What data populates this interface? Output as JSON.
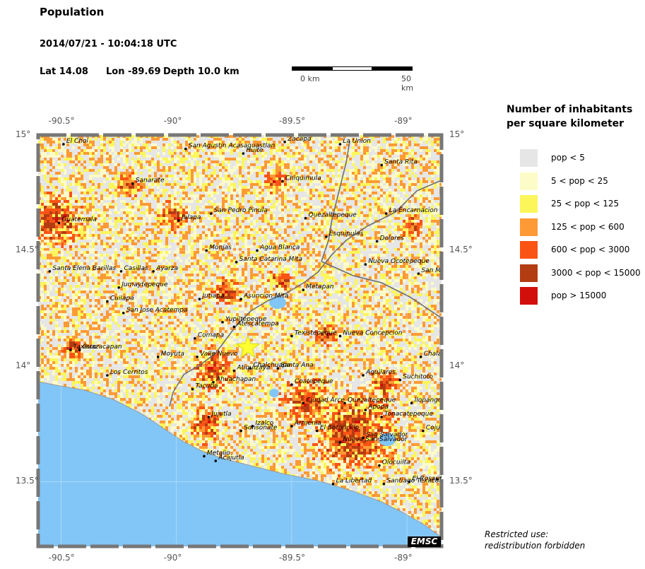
{
  "header": {
    "title": "Population",
    "datetime": "2014/07/21 - 10:04:18 UTC",
    "lat_label": "Lat 14.08",
    "lon_label": "Lon -89.69",
    "depth_label": "Depth  10.0 km"
  },
  "scale": {
    "start_label": "0 km",
    "end_label": "50 km"
  },
  "map": {
    "lon_range": [
      -90.6,
      -88.85
    ],
    "lat_range": [
      13.22,
      15.0
    ],
    "lon_ticks": [
      {
        "value": -90.5,
        "label": "-90.5°"
      },
      {
        "value": -90.0,
        "label": "-90°"
      },
      {
        "value": -89.5,
        "label": "-89.5°"
      },
      {
        "value": -89.0,
        "label": "-89°"
      }
    ],
    "lat_ticks": [
      {
        "value": 15.0,
        "label": "15°"
      },
      {
        "value": 14.5,
        "label": "14.5°"
      },
      {
        "value": 14.0,
        "label": "14°"
      },
      {
        "value": 13.5,
        "label": "13.5°"
      }
    ],
    "epicenter": {
      "lat": 14.08,
      "lon": -89.69
    },
    "cities": [
      {
        "name": "El Chol",
        "lon": -90.49,
        "lat": 14.96
      },
      {
        "name": "San Agustin Acasaguastlan",
        "lon": -89.96,
        "lat": 14.94
      },
      {
        "name": "Zacapa",
        "lon": -89.53,
        "lat": 14.97
      },
      {
        "name": "La Union",
        "lon": -89.29,
        "lat": 14.96
      },
      {
        "name": "Huite",
        "lon": -89.71,
        "lat": 14.92
      },
      {
        "name": "Santa Rita",
        "lon": -89.11,
        "lat": 14.87
      },
      {
        "name": "Sanarate",
        "lon": -90.19,
        "lat": 14.79
      },
      {
        "name": "Chiquimula",
        "lon": -89.54,
        "lat": 14.8
      },
      {
        "name": "Guatemala",
        "lon": -90.51,
        "lat": 14.62
      },
      {
        "name": "San Pedro Pinula",
        "lon": -89.85,
        "lat": 14.66
      },
      {
        "name": "Jalapa",
        "lon": -89.99,
        "lat": 14.63
      },
      {
        "name": "Quezaltepeque",
        "lon": -89.44,
        "lat": 14.64
      },
      {
        "name": "La Encarnacion",
        "lon": -89.09,
        "lat": 14.66
      },
      {
        "name": "Esquipulas",
        "lon": -89.35,
        "lat": 14.56
      },
      {
        "name": "Dolores",
        "lon": -89.13,
        "lat": 14.54
      },
      {
        "name": "Monjas",
        "lon": -89.87,
        "lat": 14.5
      },
      {
        "name": "Agua Blanca",
        "lon": -89.65,
        "lat": 14.5
      },
      {
        "name": "Santa Catarina Mita",
        "lon": -89.74,
        "lat": 14.45
      },
      {
        "name": "Nueva Ocotepeque",
        "lon": -89.18,
        "lat": 14.44
      },
      {
        "name": "San Marcos",
        "lon": -88.95,
        "lat": 14.4
      },
      {
        "name": "Santa Elena Barillas",
        "lon": -90.55,
        "lat": 14.41
      },
      {
        "name": "Casillas",
        "lon": -90.24,
        "lat": 14.41
      },
      {
        "name": "Ayarza",
        "lon": -90.1,
        "lat": 14.41
      },
      {
        "name": "Jumaytepeque",
        "lon": -90.25,
        "lat": 14.34
      },
      {
        "name": "Jutiapa",
        "lon": -89.9,
        "lat": 14.29
      },
      {
        "name": "Asuncion Mita",
        "lon": -89.72,
        "lat": 14.29
      },
      {
        "name": "Metapan",
        "lon": -89.45,
        "lat": 14.33
      },
      {
        "name": "Cuilapa",
        "lon": -90.3,
        "lat": 14.28
      },
      {
        "name": "San Jose Acatempa",
        "lon": -90.23,
        "lat": 14.23
      },
      {
        "name": "Yupiltepeque",
        "lon": -89.8,
        "lat": 14.19
      },
      {
        "name": "Atescatempa",
        "lon": -89.75,
        "lat": 14.17
      },
      {
        "name": "Comapa",
        "lon": -89.92,
        "lat": 14.12
      },
      {
        "name": "Texistepeque",
        "lon": -89.5,
        "lat": 14.13
      },
      {
        "name": "Nueva Concepcion",
        "lon": -89.29,
        "lat": 14.13
      },
      {
        "name": "Chalatenango",
        "lon": -88.94,
        "lat": 14.04
      },
      {
        "name": "Taxisco",
        "lon": -90.46,
        "lat": 14.07
      },
      {
        "name": "Guazacapan",
        "lon": -90.42,
        "lat": 14.07
      },
      {
        "name": "Moyuta",
        "lon": -90.08,
        "lat": 14.04
      },
      {
        "name": "Valle Nuevo",
        "lon": -89.91,
        "lat": 14.04
      },
      {
        "name": "Santa Ana",
        "lon": -89.56,
        "lat": 13.99
      },
      {
        "name": "Los Cerritos",
        "lon": -90.3,
        "lat": 13.96
      },
      {
        "name": "Chalchuapa",
        "lon": -89.68,
        "lat": 13.99
      },
      {
        "name": "Atiquizaya",
        "lon": -89.75,
        "lat": 13.98
      },
      {
        "name": "Aguilares",
        "lon": -89.19,
        "lat": 13.96
      },
      {
        "name": "Suchitoto",
        "lon": -89.03,
        "lat": 13.94
      },
      {
        "name": "Ahuachapan",
        "lon": -89.84,
        "lat": 13.93
      },
      {
        "name": "Coatepeque",
        "lon": -89.5,
        "lat": 13.92
      },
      {
        "name": "Tacuba",
        "lon": -89.93,
        "lat": 13.9
      },
      {
        "name": "Ciudad Arce",
        "lon": -89.45,
        "lat": 13.84
      },
      {
        "name": "Quezaltepeque",
        "lon": -89.27,
        "lat": 13.84
      },
      {
        "name": "Ilopango",
        "lon": -88.98,
        "lat": 13.84
      },
      {
        "name": "Apopa",
        "lon": -89.18,
        "lat": 13.81
      },
      {
        "name": "Tonacatepeque",
        "lon": -89.11,
        "lat": 13.78
      },
      {
        "name": "Jujutla",
        "lon": -89.86,
        "lat": 13.78
      },
      {
        "name": "Izalco",
        "lon": -89.67,
        "lat": 13.74
      },
      {
        "name": "Sonsonate",
        "lon": -89.72,
        "lat": 13.72
      },
      {
        "name": "Armenia",
        "lon": -89.5,
        "lat": 13.74
      },
      {
        "name": "El Botoncillo",
        "lon": -89.39,
        "lat": 13.72
      },
      {
        "name": "San Salvador",
        "lon": -89.19,
        "lat": 13.69
      },
      {
        "name": "Nueva San Salvador",
        "lon": -89.29,
        "lat": 13.67
      },
      {
        "name": "Cojutepeque",
        "lon": -88.93,
        "lat": 13.72
      },
      {
        "name": "Metalio",
        "lon": -89.88,
        "lat": 13.61
      },
      {
        "name": "Acajutla",
        "lon": -89.83,
        "lat": 13.59
      },
      {
        "name": "Olocuilta",
        "lon": -89.12,
        "lat": 13.57
      },
      {
        "name": "El Rosario",
        "lon": -88.99,
        "lat": 13.5
      },
      {
        "name": "Santiago Texacuangos",
        "lon": -89.1,
        "lat": 13.49
      },
      {
        "name": "Zacatecoluca",
        "lon": -88.87,
        "lat": 13.51
      },
      {
        "name": "La Libertad",
        "lon": -89.32,
        "lat": 13.49
      }
    ]
  },
  "legend": {
    "title_line1": "Number of inhabitants",
    "title_line2": "per square kilometer",
    "items": [
      {
        "label": "pop < 5",
        "color": "#e6e6e6"
      },
      {
        "label": "5 < pop < 25",
        "color": "#fdfcc8"
      },
      {
        "label": "25 < pop < 125",
        "color": "#fcf65a"
      },
      {
        "label": "125 < pop < 600",
        "color": "#fd9a35"
      },
      {
        "label": "600 < pop < 3000",
        "color": "#fa5414"
      },
      {
        "label": "3000 < pop < 15000",
        "color": "#b43c12"
      },
      {
        "label": "pop > 15000",
        "color": "#d20f0a"
      }
    ]
  },
  "colors": {
    "sea": "#82c6f7",
    "border": "#6e6e6e",
    "epicenter": "#ffff33"
  },
  "footer": {
    "restricted_line1": "Restricted use:",
    "restricted_line2": "redistribution forbidden",
    "logo": "EMSC"
  }
}
